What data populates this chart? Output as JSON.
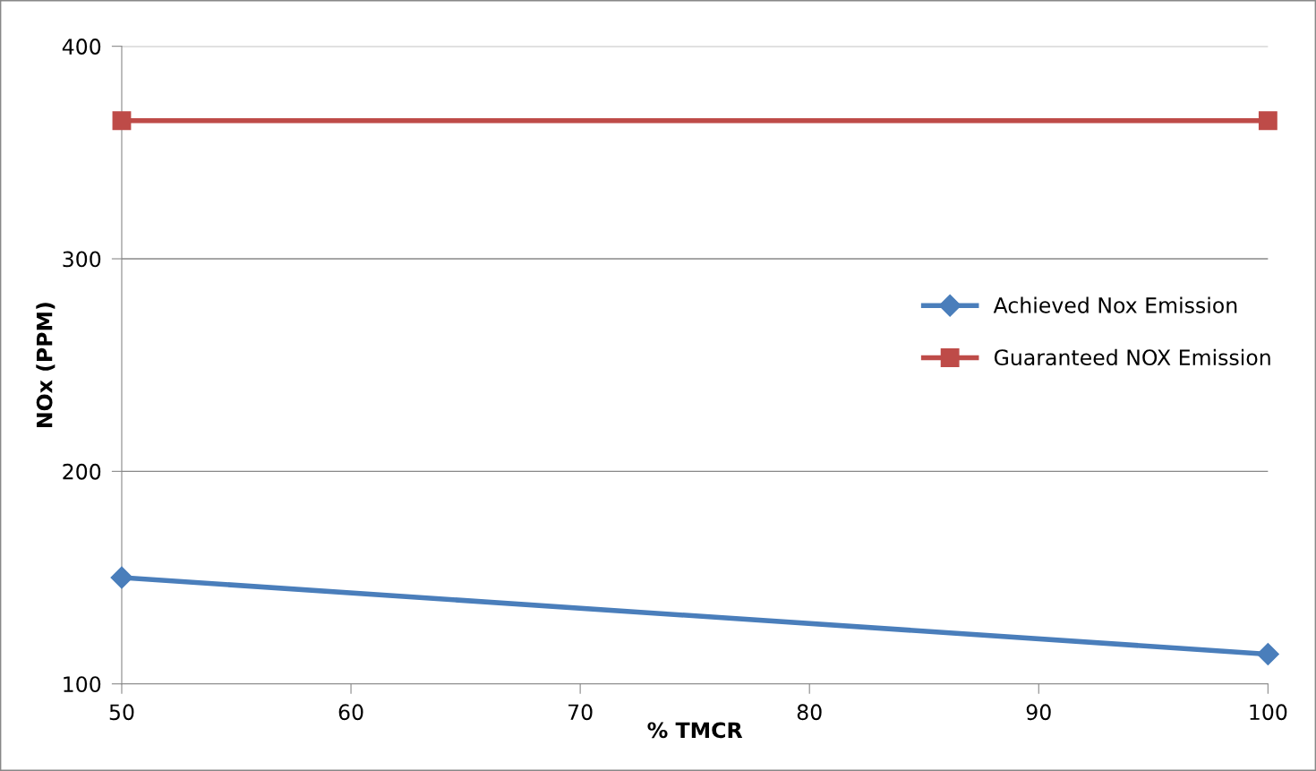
{
  "chart_data": {
    "type": "line",
    "xlabel": "% TMCR",
    "ylabel": "NOx (PPM)",
    "x": [
      50,
      100
    ],
    "series": [
      {
        "name": "Achieved Nox Emission",
        "color": "#4a7ebb",
        "values": [
          150,
          114
        ],
        "marker": "diamond"
      },
      {
        "name": "Guaranteed NOX Emission",
        "color": "#be4b48",
        "values": [
          365,
          365
        ],
        "marker": "square"
      }
    ],
    "xlim": [
      50,
      100
    ],
    "xticks": [
      50,
      60,
      70,
      80,
      90,
      100
    ],
    "ylim": [
      100,
      400
    ],
    "yticks": [
      100,
      200,
      300,
      400
    ],
    "grid": "y",
    "legend": "right",
    "line_style": "solid"
  }
}
